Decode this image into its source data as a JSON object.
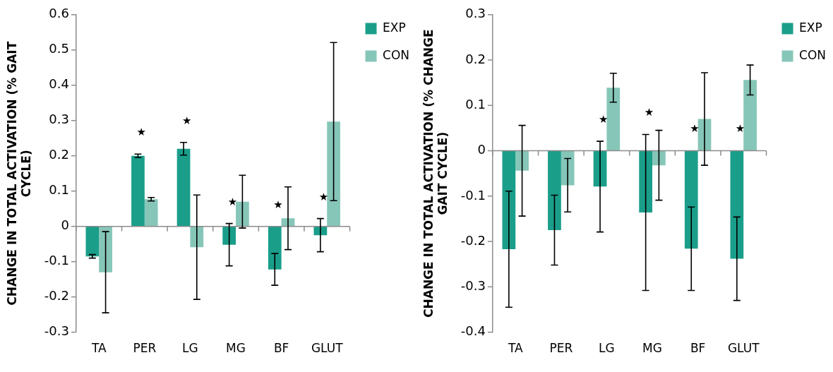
{
  "chart_data": [
    {
      "type": "bar",
      "ylabel": "CHANGE IN TOTAL ACTIVATION (% GAIT CYCLE)",
      "categories": [
        "TA",
        "PER",
        "LG",
        "MG",
        "BF",
        "GLUT"
      ],
      "series": [
        {
          "name": "EXP",
          "color": "#1a9e8a",
          "values": [
            -0.085,
            0.2,
            0.22,
            -0.052,
            -0.122,
            -0.025
          ],
          "errors": [
            0.005,
            0.005,
            0.018,
            0.06,
            0.045,
            0.047
          ]
        },
        {
          "name": "CON",
          "color": "#86c6b8",
          "values": [
            -0.13,
            0.077,
            -0.059,
            0.07,
            0.023,
            0.297
          ],
          "errors": [
            0.115,
            0.005,
            0.148,
            0.075,
            0.089,
            0.224
          ]
        }
      ],
      "ylim": [
        -0.3,
        0.6
      ],
      "yticks": [
        -0.3,
        -0.2,
        -0.1,
        0,
        0.1,
        0.2,
        0.3,
        0.4,
        0.5,
        0.6
      ],
      "legend": "top right",
      "annotations": [
        "★",
        "★",
        "★",
        "★",
        "★"
      ]
    },
    {
      "type": "bar",
      "ylabel": "CHANGE IN TOTAL ACTIVATION (% CHANGE GAIT CYCLE)",
      "categories": [
        "TA",
        "PER",
        "LG",
        "MG",
        "BF",
        "GLUT"
      ],
      "series": [
        {
          "name": "EXP",
          "color": "#1a9e8a",
          "values": [
            -0.217,
            -0.175,
            -0.079,
            -0.136,
            -0.216,
            -0.238
          ],
          "errors": [
            0.128,
            0.077,
            0.1,
            0.172,
            0.092,
            0.092
          ]
        },
        {
          "name": "CON",
          "color": "#86c6b8",
          "values": [
            -0.044,
            -0.076,
            0.139,
            -0.032,
            0.07,
            0.156
          ],
          "errors": [
            0.1,
            0.059,
            0.032,
            0.077,
            0.102,
            0.033
          ]
        }
      ],
      "ylim": [
        -0.4,
        0.3
      ],
      "yticks": [
        -0.4,
        -0.3,
        -0.2,
        -0.1,
        0,
        0.1,
        0.2,
        0.3
      ],
      "legend": "top right",
      "annotations": [
        "★",
        "★",
        "★",
        "★"
      ]
    }
  ]
}
